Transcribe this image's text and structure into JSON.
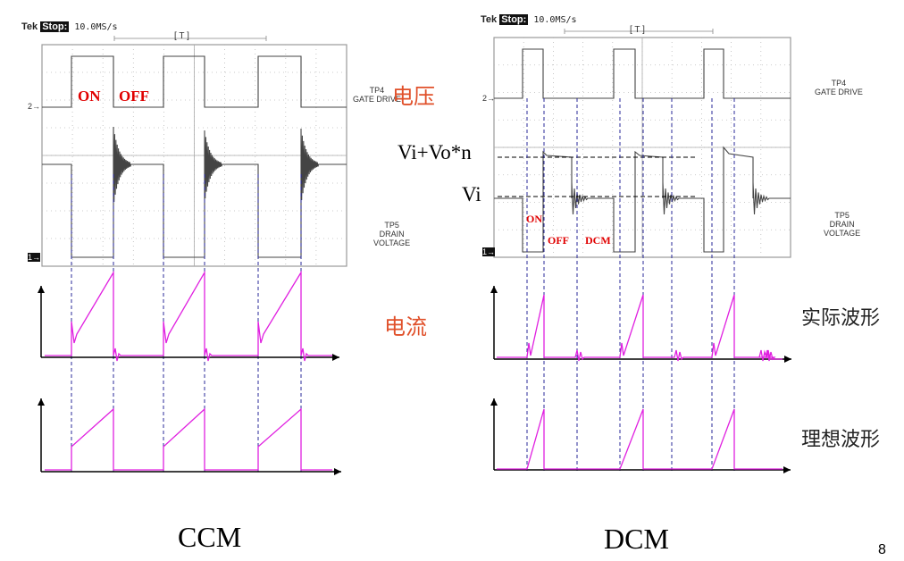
{
  "scope_header": {
    "brand": "Tek",
    "state": "Stop:",
    "rate": "10.0MS/s",
    "trigger_bracket": "[ T ]"
  },
  "channels": {
    "ch2_marker": "2→",
    "ch1_marker": "1→",
    "tp4": [
      "TP4",
      "GATE DRIVE"
    ],
    "tp5": [
      "TP5",
      "DRAIN",
      "VOLTAGE"
    ]
  },
  "labels": {
    "voltage": "电压",
    "current": "电流",
    "actual_waveform": "实际波形",
    "ideal_waveform": "理想波形",
    "ccm": "CCM",
    "dcm": "DCM",
    "on": "ON",
    "off": "OFF",
    "dcm_phase": "DCM",
    "vi_vo_n": "Vi+Vo*n",
    "vi": "Vi",
    "page_number": "8"
  },
  "colors": {
    "current_trace": "#e020e0",
    "annotation_red": "#e00000",
    "chinese_label": "#e0502a",
    "dashed": "#2a2a9a"
  }
}
